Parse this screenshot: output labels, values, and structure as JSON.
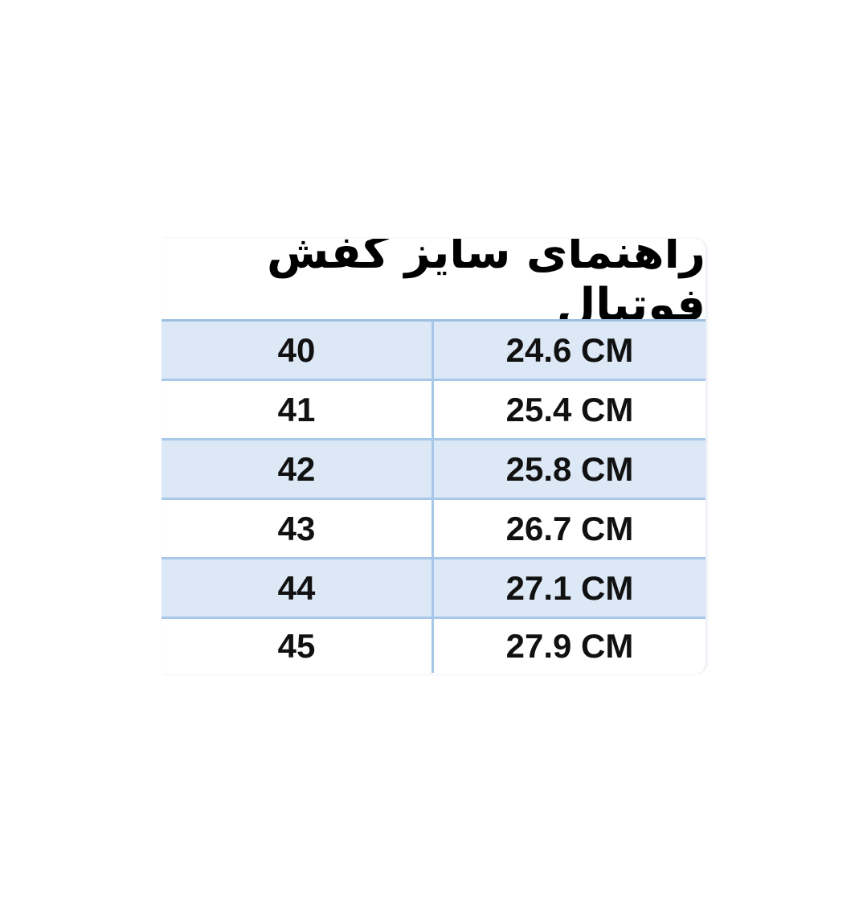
{
  "title": "راهنمای سایز کفش فوتبال",
  "colors": {
    "row_shade": "#dce8f6",
    "border": "#a7c8e8"
  },
  "rows": [
    {
      "size": "40",
      "length": "24.6 CM"
    },
    {
      "size": "41",
      "length": "25.4 CM"
    },
    {
      "size": "42",
      "length": "25.8 CM"
    },
    {
      "size": "43",
      "length": "26.7 CM"
    },
    {
      "size": "44",
      "length": "27.1 CM"
    },
    {
      "size": "45",
      "length": "27.9 CM"
    }
  ]
}
